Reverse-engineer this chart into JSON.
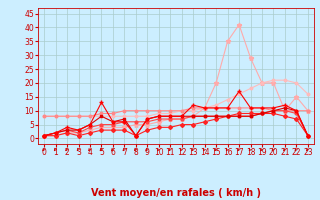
{
  "background_color": "#cceeff",
  "grid_color": "#aacccc",
  "xlabel": "Vent moyen/en rafales ( km/h )",
  "font_color": "#cc0000",
  "tick_fontsize": 5.5,
  "xlabel_fontsize": 7,
  "x": [
    0,
    1,
    2,
    3,
    4,
    5,
    6,
    7,
    8,
    9,
    10,
    11,
    12,
    13,
    14,
    15,
    16,
    17,
    18,
    19,
    20,
    21,
    22,
    23
  ],
  "ylim": [
    -2,
    47
  ],
  "xlim": [
    -0.5,
    23.5
  ],
  "yticks": [
    0,
    5,
    10,
    15,
    20,
    25,
    30,
    35,
    40,
    45
  ],
  "xticks": [
    0,
    1,
    2,
    3,
    4,
    5,
    6,
    7,
    8,
    9,
    10,
    11,
    12,
    13,
    14,
    15,
    16,
    17,
    18,
    19,
    20,
    21,
    22,
    23
  ],
  "line_light1_color": "#ffaaaa",
  "line_light1_y": [
    1,
    1,
    2,
    2,
    3,
    4,
    4,
    4,
    5,
    5,
    6,
    7,
    7,
    8,
    11,
    20,
    35,
    41,
    29,
    20,
    20,
    10,
    15,
    10
  ],
  "line_light2_color": "#ffbbbb",
  "line_light2_y": [
    8,
    8,
    8,
    8,
    8,
    8,
    8,
    8,
    8,
    8,
    9,
    9,
    10,
    10,
    11,
    12,
    14,
    16,
    18,
    20,
    21,
    21,
    20,
    16
  ],
  "line_med1_color": "#ff8888",
  "line_med1_y": [
    8,
    8,
    8,
    8,
    8,
    9,
    9,
    10,
    10,
    10,
    10,
    10,
    10,
    11,
    11,
    11,
    11,
    11,
    11,
    11,
    10,
    10,
    10,
    10
  ],
  "line_red1_color": "#ff4444",
  "line_red1_y": [
    1,
    2,
    3,
    2,
    4,
    5,
    5,
    6,
    6,
    6,
    7,
    7,
    7,
    8,
    8,
    8,
    8,
    8,
    8,
    9,
    10,
    10,
    9,
    1
  ],
  "line_red2_color": "#ff2222",
  "line_red2_y": [
    1,
    1,
    2,
    1,
    2,
    3,
    3,
    3,
    1,
    3,
    4,
    4,
    5,
    5,
    6,
    7,
    8,
    9,
    9,
    9,
    9,
    8,
    7,
    1
  ],
  "line_dark1_color": "#dd0000",
  "line_dark1_y": [
    1,
    2,
    3,
    3,
    5,
    8,
    6,
    7,
    1,
    7,
    8,
    8,
    8,
    8,
    8,
    8,
    8,
    8,
    8,
    9,
    10,
    11,
    10,
    1
  ],
  "line_dark2_color": "#ff0000",
  "line_dark2_y": [
    1,
    2,
    4,
    3,
    5,
    13,
    6,
    6,
    1,
    7,
    8,
    8,
    8,
    12,
    11,
    11,
    11,
    17,
    11,
    11,
    11,
    12,
    10,
    1
  ],
  "arrow_color": "#cc0000"
}
